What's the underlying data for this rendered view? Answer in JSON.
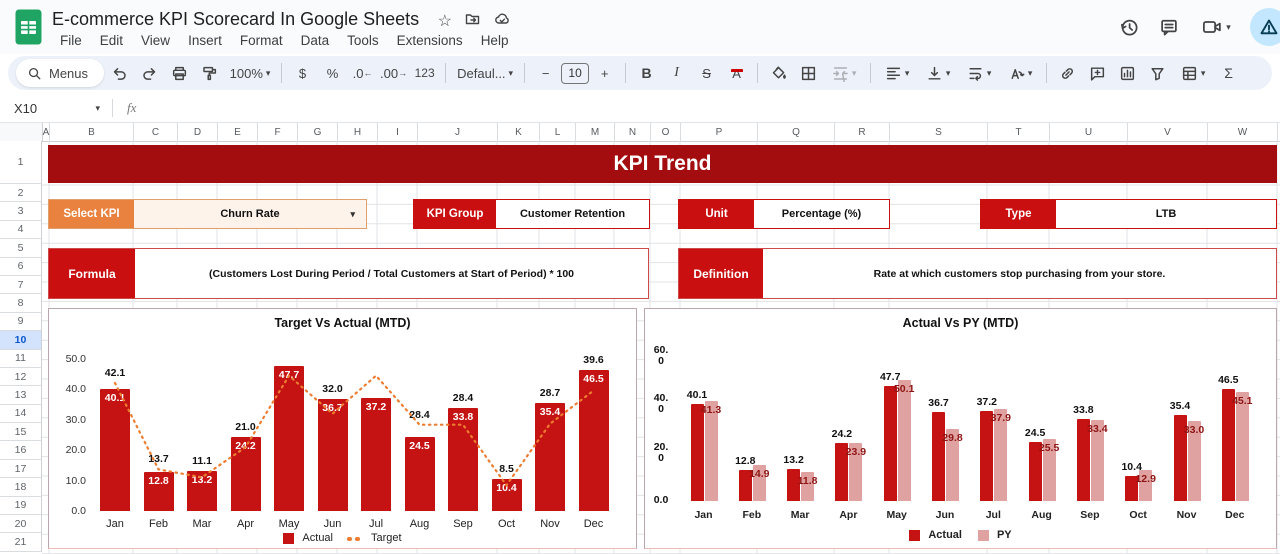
{
  "app": {
    "doc_title": "E-commerce KPI Scorecard In Google Sheets",
    "menu_items": [
      "File",
      "Edit",
      "View",
      "Insert",
      "Format",
      "Data",
      "Tools",
      "Extensions",
      "Help"
    ]
  },
  "icons": {
    "star": "☆",
    "caret": "▾",
    "decrease_arrow": "←",
    "increase_arrow": "→"
  },
  "toolbar": {
    "menus_label": "Menus",
    "zoom_value": "100%",
    "currency": "$",
    "percent": "%",
    "decrease_decimal": ".0",
    "increase_decimal": ".00",
    "more_formats": "123",
    "font_name": "Defaul...",
    "minus": "−",
    "font_size": "10",
    "plus": "+",
    "bold": "B",
    "italic": "I",
    "strikethrough": "S",
    "text_color": "A",
    "functions": "Σ"
  },
  "formula_bar": {
    "cell_reference": "X10",
    "fx_label": "fx"
  },
  "grid": {
    "column_headers": [
      "A",
      "B",
      "C",
      "D",
      "E",
      "F",
      "G",
      "H",
      "I",
      "J",
      "K",
      "L",
      "M",
      "N",
      "O",
      "P",
      "Q",
      "R",
      "S",
      "T",
      "U",
      "V",
      "W"
    ],
    "row_headers": [
      "1",
      "2",
      "3",
      "4",
      "5",
      "6",
      "7",
      "8",
      "9",
      "10",
      "11",
      "12",
      "13",
      "14",
      "15",
      "16",
      "17",
      "18",
      "19",
      "20",
      "21"
    ],
    "selected_row": "10"
  },
  "scorecard": {
    "banner_title": "KPI Trend",
    "select_kpi": {
      "label": "Select KPI",
      "value": "Churn Rate"
    },
    "kpi_group": {
      "label": "KPI Group",
      "value": "Customer Retention"
    },
    "unit": {
      "label": "Unit",
      "value": "Percentage (%)"
    },
    "type": {
      "label": "Type",
      "value": "LTB"
    },
    "formula": {
      "label": "Formula",
      "value": "(Customers Lost During Period / Total Customers at Start of Period) * 100"
    },
    "definition": {
      "label": "Definition",
      "value": "Rate at which customers stop purchasing from your store."
    }
  },
  "chart_data": [
    {
      "type": "bar+line",
      "title": "Target Vs Actual (MTD)",
      "categories": [
        "Jan",
        "Feb",
        "Mar",
        "Apr",
        "May",
        "Jun",
        "Jul",
        "Aug",
        "Sep",
        "Oct",
        "Nov",
        "Dec"
      ],
      "series": [
        {
          "name": "Actual",
          "render": "bar",
          "color": "#c51212",
          "values": [
            40.1,
            12.8,
            13.2,
            24.2,
            47.7,
            36.7,
            37.2,
            24.5,
            33.8,
            10.4,
            35.4,
            46.5
          ]
        },
        {
          "name": "Target",
          "render": "dotted-line",
          "color": "#ed7d31",
          "values": [
            42.1,
            13.7,
            11.1,
            21.0,
            44.5,
            32.0,
            44.5,
            28.4,
            28.4,
            8.5,
            28.7,
            39.6
          ],
          "hidden_labels": [
            "May",
            "Jul"
          ],
          "values_estimated": [
            "May",
            "Jul"
          ]
        }
      ],
      "ylim": [
        0,
        50
      ],
      "yticks": [
        "0.0",
        "10.0",
        "20.0",
        "30.0",
        "40.0",
        "50.0"
      ],
      "legend_position": "bottom",
      "grid": false
    },
    {
      "type": "grouped-bar",
      "title": "Actual Vs PY (MTD)",
      "categories": [
        "Jan",
        "Feb",
        "Mar",
        "Apr",
        "May",
        "Jun",
        "Jul",
        "Aug",
        "Sep",
        "Oct",
        "Nov",
        "Dec"
      ],
      "series": [
        {
          "name": "Actual",
          "render": "bar",
          "color": "#c51212",
          "values": [
            40.1,
            12.8,
            13.2,
            24.2,
            47.7,
            36.7,
            37.2,
            24.5,
            33.8,
            10.4,
            35.4,
            46.5
          ]
        },
        {
          "name": "PY",
          "render": "bar",
          "color": "#e0a2a0",
          "values": [
            41.3,
            14.9,
            11.8,
            23.9,
            50.1,
            29.8,
            37.9,
            25.5,
            33.4,
            12.9,
            33.0,
            45.1
          ]
        }
      ],
      "ylim": [
        0,
        60
      ],
      "yticks": [
        "0.0",
        "20.0",
        "40.0",
        "60.0"
      ],
      "legend_position": "bottom",
      "grid": false
    }
  ],
  "colors": {
    "banner_red": "#a30d10",
    "label_red": "#c90f0f",
    "bar_red": "#c51212",
    "py_pink": "#e0a2a0",
    "target_orange": "#ed7d31",
    "select_orange": "#e8823e",
    "select_bg": "#fdf3eb",
    "row_highlight": "#d3e3fd",
    "toolbar_bg": "#edf2fa",
    "share_blue": "#c2e7ff"
  }
}
